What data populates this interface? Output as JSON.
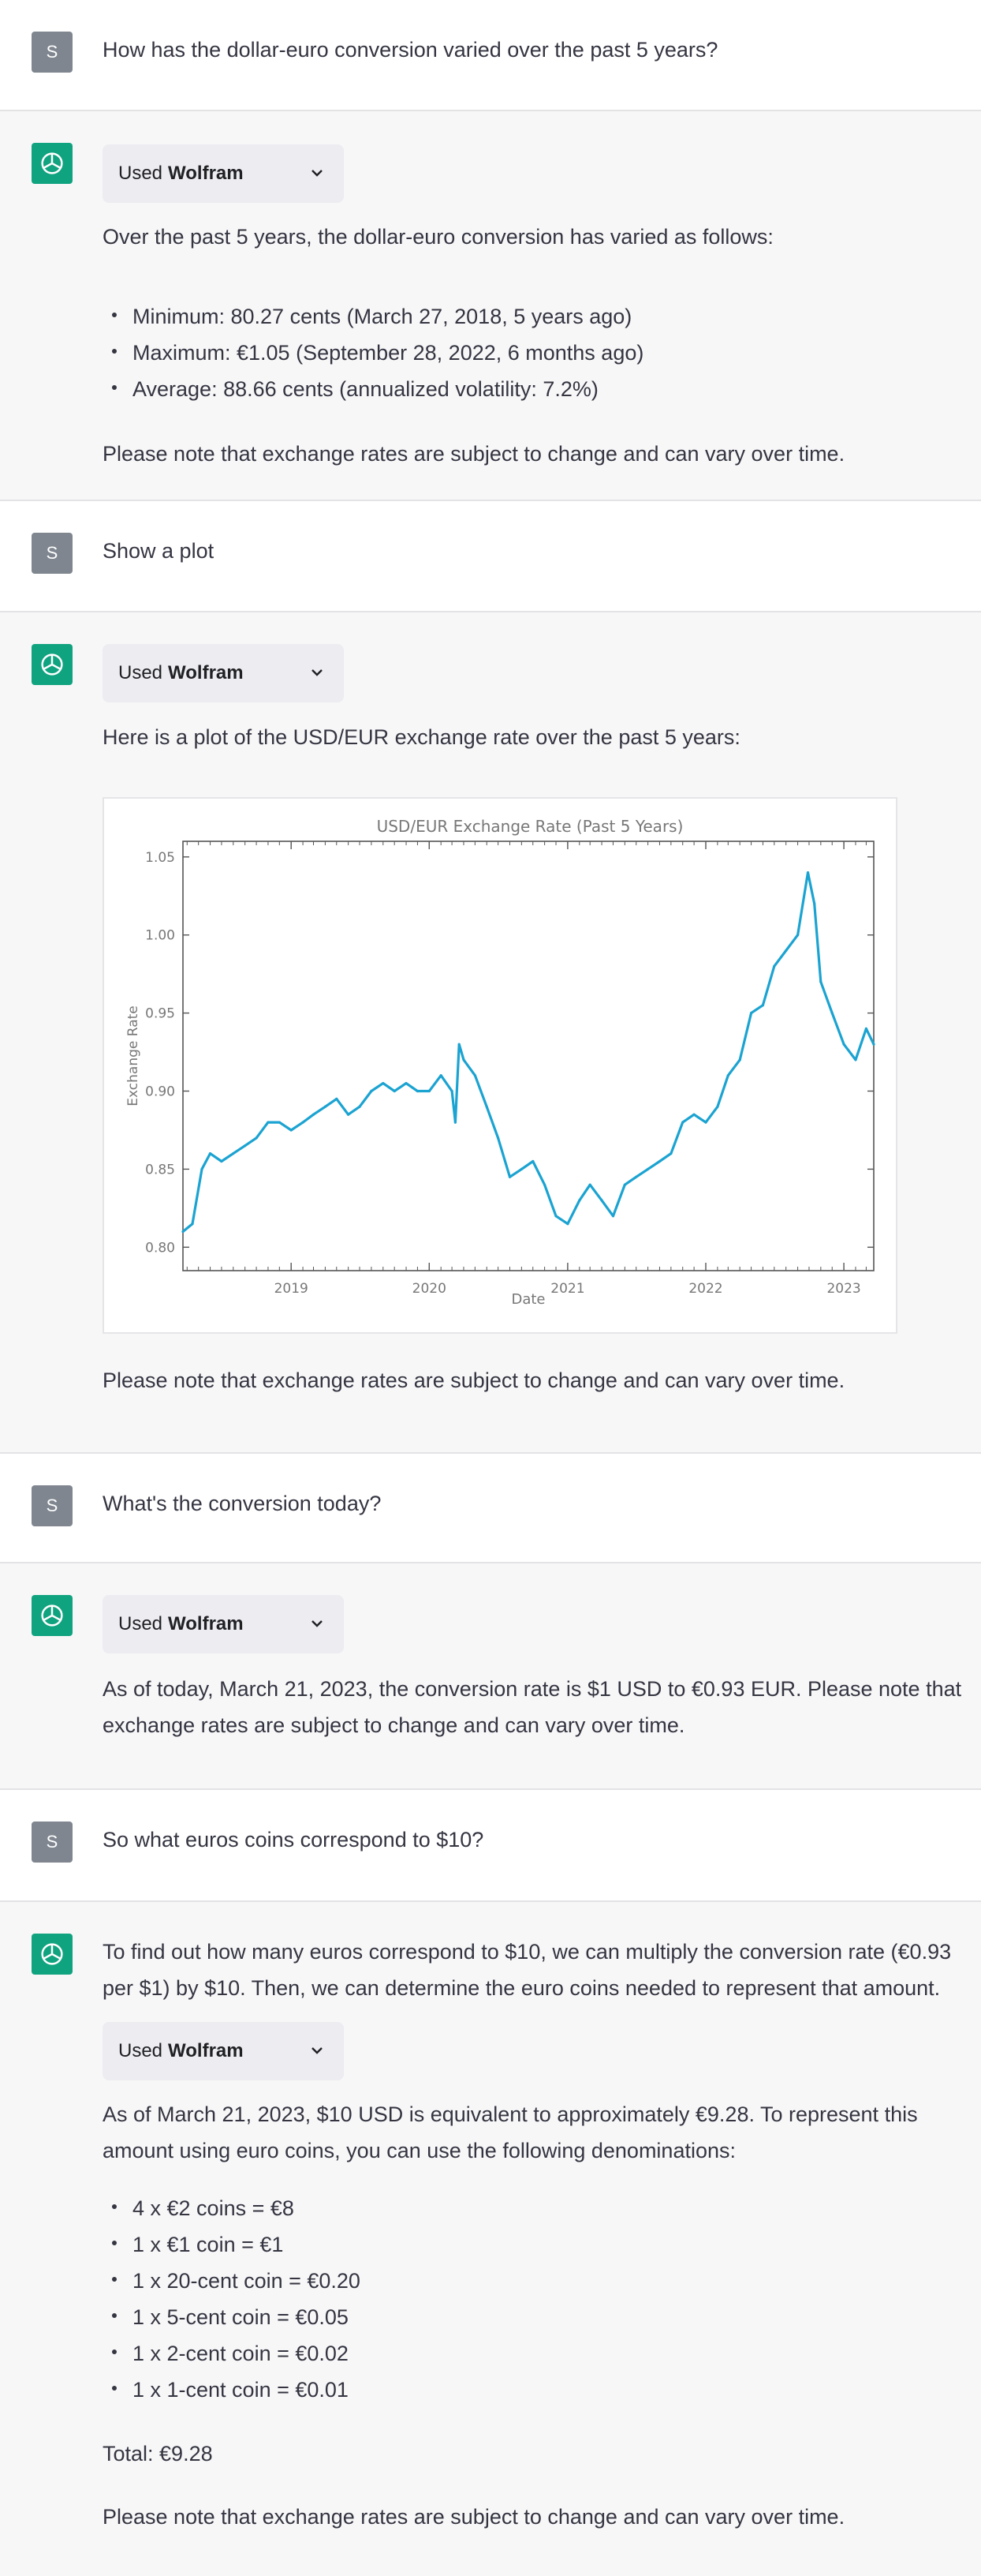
{
  "user_initial": "S",
  "plugin": {
    "used_label": "Used",
    "plugin_name": "Wolfram"
  },
  "q1": {
    "text": "How has the dollar-euro conversion varied over the past 5 years?"
  },
  "a1": {
    "intro": "Over the past 5 years, the dollar-euro conversion has varied as follows:",
    "items": [
      "Minimum: 80.27 cents (March 27, 2018, 5 years ago)",
      "Maximum: €1.05 (September 28, 2022, 6 months ago)",
      "Average: 88.66 cents (annualized volatility: 7.2%)"
    ],
    "note": "Please note that exchange rates are subject to change and can vary over time."
  },
  "q2": {
    "text": "Show a plot"
  },
  "a2": {
    "intro": "Here is a plot of the USD/EUR exchange rate over the past 5 years:",
    "note": "Please note that exchange rates are subject to change and can vary over time."
  },
  "q3": {
    "text": "What's the conversion today?"
  },
  "a3": {
    "text": "As of today, March 21, 2023, the conversion rate is $1 USD to €0.93 EUR. Please note that exchange rates are subject to change and can vary over time."
  },
  "q4": {
    "text": "So what euros coins correspond to $10?"
  },
  "a4": {
    "intro": "To find out how many euros correspond to $10, we can multiply the conversion rate (€0.93 per $1) by $10. Then, we can determine the euro coins needed to represent that amount.",
    "para": "As of March 21, 2023, $10 USD is equivalent to approximately €9.28. To represent this amount using euro coins, you can use the following denominations:",
    "items": [
      "4 x €2 coins = €8",
      "1 x €1 coin = €1",
      "1 x 20-cent coin = €0.20",
      "1 x 5-cent coin = €0.05",
      "1 x 2-cent coin = €0.02",
      "1 x 1-cent coin = €0.01"
    ],
    "total": "Total: €9.28",
    "note": "Please note that exchange rates are subject to change and can vary over time."
  },
  "chart_data": {
    "type": "line",
    "title": "USD/EUR Exchange Rate (Past 5 Years)",
    "xlabel": "Date",
    "ylabel": "Exchange Rate",
    "xlim": [
      "2018-03-21",
      "2023-03-21"
    ],
    "ylim": [
      0.785,
      1.06
    ],
    "x_ticks": [
      "2019",
      "2020",
      "2021",
      "2022",
      "2023"
    ],
    "y_ticks": [
      "0.80",
      "0.85",
      "0.90",
      "0.95",
      "1.00",
      "1.05"
    ],
    "series_color": "#1ba3d1",
    "grid": false,
    "series": [
      {
        "x": [
          "2018-03-21",
          "2018-04-15",
          "2018-05-10",
          "2018-06-01",
          "2018-07-01",
          "2018-08-01",
          "2018-09-01",
          "2018-10-01",
          "2018-11-01",
          "2018-12-01",
          "2019-01-01",
          "2019-02-01",
          "2019-03-01",
          "2019-04-01",
          "2019-05-01",
          "2019-06-01",
          "2019-07-01",
          "2019-08-01",
          "2019-09-01",
          "2019-10-01",
          "2019-11-01",
          "2019-12-01",
          "2020-01-01",
          "2020-02-01",
          "2020-03-01",
          "2020-03-10",
          "2020-03-20",
          "2020-04-01",
          "2020-05-01",
          "2020-06-01",
          "2020-07-01",
          "2020-08-01",
          "2020-09-01",
          "2020-10-01",
          "2020-11-01",
          "2020-12-01",
          "2021-01-01",
          "2021-02-01",
          "2021-03-01",
          "2021-04-01",
          "2021-05-01",
          "2021-06-01",
          "2021-07-01",
          "2021-08-01",
          "2021-09-01",
          "2021-10-01",
          "2021-11-01",
          "2021-12-01",
          "2022-01-01",
          "2022-02-01",
          "2022-03-01",
          "2022-04-01",
          "2022-05-01",
          "2022-06-01",
          "2022-07-01",
          "2022-08-01",
          "2022-09-01",
          "2022-09-28",
          "2022-10-15",
          "2022-11-01",
          "2022-12-01",
          "2023-01-01",
          "2023-02-01",
          "2023-03-01",
          "2023-03-21"
        ],
        "values": [
          0.81,
          0.815,
          0.85,
          0.86,
          0.855,
          0.86,
          0.865,
          0.87,
          0.88,
          0.88,
          0.875,
          0.88,
          0.885,
          0.89,
          0.895,
          0.885,
          0.89,
          0.9,
          0.905,
          0.9,
          0.905,
          0.9,
          0.9,
          0.91,
          0.9,
          0.88,
          0.93,
          0.92,
          0.91,
          0.89,
          0.87,
          0.845,
          0.85,
          0.855,
          0.84,
          0.82,
          0.815,
          0.83,
          0.84,
          0.83,
          0.82,
          0.84,
          0.845,
          0.85,
          0.855,
          0.86,
          0.88,
          0.885,
          0.88,
          0.89,
          0.91,
          0.92,
          0.95,
          0.955,
          0.98,
          0.99,
          1.0,
          1.04,
          1.02,
          0.97,
          0.95,
          0.93,
          0.92,
          0.94,
          0.93
        ]
      }
    ]
  }
}
